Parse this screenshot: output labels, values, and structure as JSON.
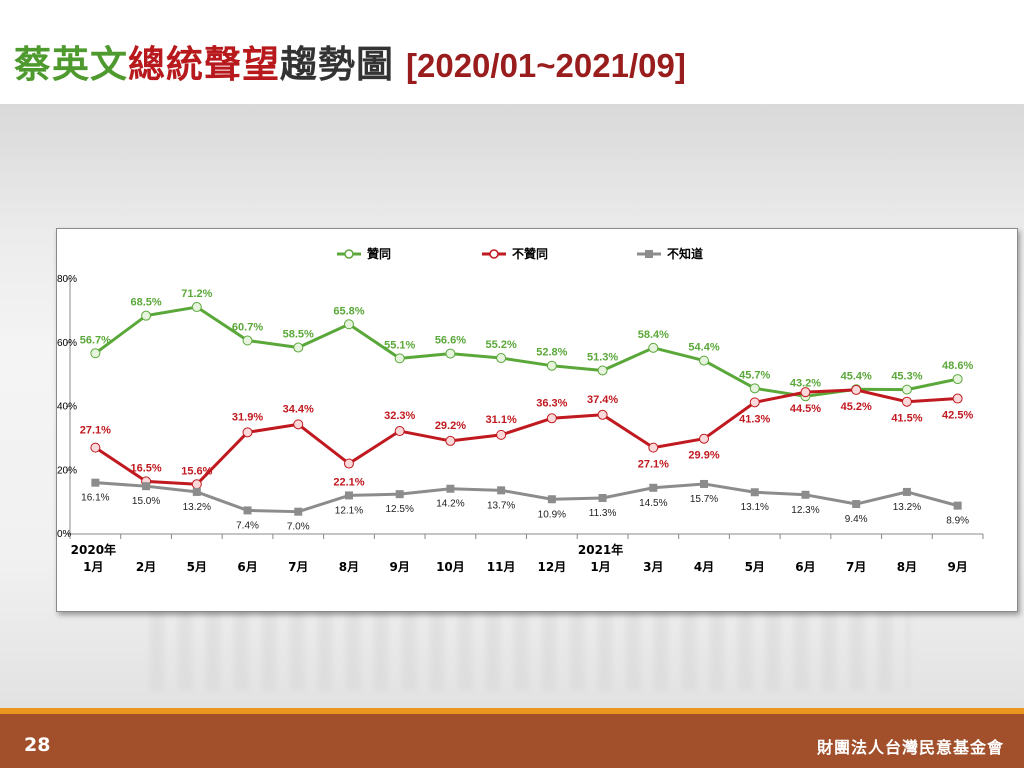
{
  "header": {
    "title_part1": "蔡英文",
    "title_part2": "總統聲望",
    "title_part3": "趨勢圖",
    "date_range": "[2020/01~2021/09]"
  },
  "footer": {
    "page_number": "28",
    "organization": "財團法人台灣民意基金會"
  },
  "colors": {
    "approve": "#5ba83a",
    "disapprove": "#c0191f",
    "unknown": "#8c8c8c",
    "footer_bg": "#a1502b",
    "footer_stripe": "#e8961e"
  },
  "chart_data": {
    "type": "line",
    "categories": [
      [
        "2020年",
        "1月"
      ],
      [
        "",
        "2月"
      ],
      [
        "",
        "5月"
      ],
      [
        "",
        "6月"
      ],
      [
        "",
        "7月"
      ],
      [
        "",
        "8月"
      ],
      [
        "",
        "9月"
      ],
      [
        "",
        "10月"
      ],
      [
        "",
        "11月"
      ],
      [
        "",
        "12月"
      ],
      [
        "2021年",
        "1月"
      ],
      [
        "",
        "3月"
      ],
      [
        "",
        "4月"
      ],
      [
        "",
        "5月"
      ],
      [
        "",
        "6月"
      ],
      [
        "",
        "7月"
      ],
      [
        "",
        "8月"
      ],
      [
        "",
        "9月"
      ]
    ],
    "yticks": [
      "0%",
      "20%",
      "40%",
      "60%",
      "80%"
    ],
    "ylim": [
      0,
      80
    ],
    "grid": false,
    "legend_position": "top-center",
    "series": [
      {
        "name": "贊同",
        "color": "#5ba83a",
        "values": [
          56.7,
          68.5,
          71.2,
          60.7,
          58.5,
          65.8,
          55.1,
          56.6,
          55.2,
          52.8,
          51.3,
          58.4,
          54.4,
          45.7,
          43.2,
          45.4,
          45.3,
          48.6
        ],
        "labels": [
          "56.7%",
          "68.5%",
          "71.2%",
          "60.7%",
          "58.5%",
          "65.8%",
          "55.1%",
          "56.6%",
          "55.2%",
          "52.8%",
          "51.3%",
          "58.4%",
          "54.4%",
          "45.7%",
          "43.2%",
          "45.4%",
          "45.3%",
          "48.6%"
        ]
      },
      {
        "name": "不贊同",
        "color": "#c0191f",
        "values": [
          27.1,
          16.5,
          15.6,
          31.9,
          34.4,
          22.1,
          32.3,
          29.2,
          31.1,
          36.3,
          37.4,
          27.1,
          29.9,
          41.3,
          44.5,
          45.2,
          41.5,
          42.5
        ],
        "labels": [
          "27.1%",
          "16.5%",
          "15.6%",
          "31.9%",
          "34.4%",
          "22.1%",
          "32.3%",
          "29.2%",
          "31.1%",
          "36.3%",
          "37.4%",
          "27.1%",
          "29.9%",
          "41.3%",
          "44.5%",
          "45.2%",
          "41.5%",
          "42.5%"
        ]
      },
      {
        "name": "不知道",
        "color": "#8c8c8c",
        "values": [
          16.1,
          15.0,
          13.2,
          7.4,
          7.0,
          12.1,
          12.5,
          14.2,
          13.7,
          10.9,
          11.3,
          14.5,
          15.7,
          13.1,
          12.3,
          9.4,
          13.2,
          8.9
        ],
        "labels": [
          "16.1%",
          "15.0%",
          "13.2%",
          "7.4%",
          "7.0%",
          "12.1%",
          "12.5%",
          "14.2%",
          "13.7%",
          "10.9%",
          "11.3%",
          "14.5%",
          "15.7%",
          "13.1%",
          "12.3%",
          "9.4%",
          "13.2%",
          "8.9%"
        ]
      }
    ]
  }
}
